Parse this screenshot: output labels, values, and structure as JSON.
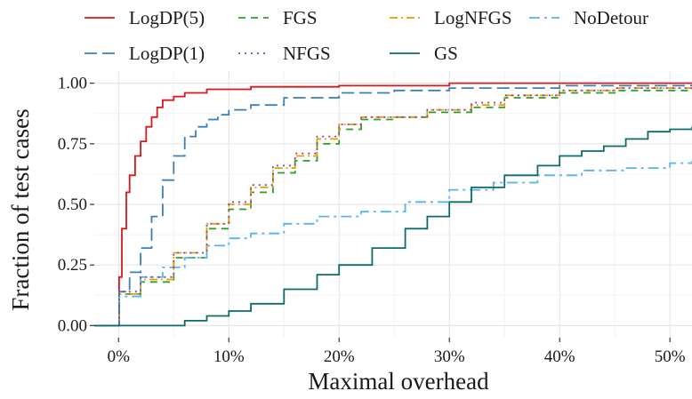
{
  "chart_data": {
    "type": "line",
    "xlabel": "Maximal overhead",
    "ylabel": "Fraction of test cases",
    "x_ticks": [
      "0%",
      "10%",
      "20%",
      "30%",
      "40%",
      "50%"
    ],
    "x_tick_values": [
      0,
      10,
      20,
      30,
      40,
      50
    ],
    "y_ticks": [
      "0.00",
      "0.25",
      "0.50",
      "0.75",
      "1.00"
    ],
    "y_tick_values": [
      0,
      0.25,
      0.5,
      0.75,
      1.0
    ],
    "xlim": [
      -2.2,
      52
    ],
    "ylim": [
      -0.05,
      1.05
    ],
    "grid": true,
    "legend_position": "top",
    "series": [
      {
        "name": "LogDP(5)",
        "color": "#d7191c",
        "dash": "solid",
        "points": [
          [
            -2.2,
            0
          ],
          [
            0,
            0
          ],
          [
            0.05,
            0.2
          ],
          [
            0.3,
            0.4
          ],
          [
            0.7,
            0.55
          ],
          [
            1,
            0.62
          ],
          [
            1.5,
            0.7
          ],
          [
            2,
            0.76
          ],
          [
            2.5,
            0.82
          ],
          [
            3,
            0.86
          ],
          [
            3.5,
            0.9
          ],
          [
            4,
            0.93
          ],
          [
            5,
            0.945
          ],
          [
            6,
            0.96
          ],
          [
            8,
            0.975
          ],
          [
            12,
            0.985
          ],
          [
            20,
            0.99
          ],
          [
            30,
            1
          ],
          [
            52,
            1
          ]
        ]
      },
      {
        "name": "FGS",
        "color": "#2ca02c",
        "dash": "8,6",
        "points": [
          [
            -2.2,
            0
          ],
          [
            0,
            0
          ],
          [
            0.05,
            0.13
          ],
          [
            2,
            0.18
          ],
          [
            5,
            0.28
          ],
          [
            8,
            0.4
          ],
          [
            10,
            0.48
          ],
          [
            12,
            0.55
          ],
          [
            14,
            0.63
          ],
          [
            16,
            0.68
          ],
          [
            18,
            0.75
          ],
          [
            20,
            0.81
          ],
          [
            22,
            0.85
          ],
          [
            25,
            0.86
          ],
          [
            28,
            0.88
          ],
          [
            32,
            0.9
          ],
          [
            35,
            0.94
          ],
          [
            40,
            0.96
          ],
          [
            45,
            0.97
          ],
          [
            52,
            0.98
          ]
        ]
      },
      {
        "name": "LogNFGS",
        "color": "#e69f00",
        "dash": "9,4,2,4",
        "points": [
          [
            -2.2,
            0
          ],
          [
            0,
            0
          ],
          [
            0.05,
            0.13
          ],
          [
            2,
            0.19
          ],
          [
            5,
            0.3
          ],
          [
            8,
            0.42
          ],
          [
            10,
            0.5
          ],
          [
            12,
            0.57
          ],
          [
            14,
            0.65
          ],
          [
            16,
            0.7
          ],
          [
            18,
            0.77
          ],
          [
            20,
            0.83
          ],
          [
            22,
            0.86
          ],
          [
            25,
            0.86
          ],
          [
            28,
            0.89
          ],
          [
            32,
            0.91
          ],
          [
            35,
            0.95
          ],
          [
            40,
            0.97
          ],
          [
            45,
            0.98
          ],
          [
            52,
            0.99
          ]
        ]
      },
      {
        "name": "NoDetour",
        "color": "#56b4e9",
        "dash": "12,5,3,5",
        "points": [
          [
            -2.2,
            0
          ],
          [
            0,
            0
          ],
          [
            0.05,
            0.12
          ],
          [
            2,
            0.2
          ],
          [
            4,
            0.24
          ],
          [
            6,
            0.28
          ],
          [
            8,
            0.33
          ],
          [
            10,
            0.36
          ],
          [
            12,
            0.38
          ],
          [
            15,
            0.42
          ],
          [
            18,
            0.45
          ],
          [
            22,
            0.47
          ],
          [
            26,
            0.51
          ],
          [
            30,
            0.56
          ],
          [
            34,
            0.59
          ],
          [
            38,
            0.62
          ],
          [
            42,
            0.64
          ],
          [
            46,
            0.65
          ],
          [
            50,
            0.67
          ],
          [
            52,
            0.68
          ]
        ]
      },
      {
        "name": "LogDP(1)",
        "color": "#3a7fb5",
        "dash": "14,6",
        "points": [
          [
            -2.2,
            0
          ],
          [
            0,
            0
          ],
          [
            0.05,
            0.14
          ],
          [
            1,
            0.22
          ],
          [
            2,
            0.32
          ],
          [
            3,
            0.45
          ],
          [
            4,
            0.6
          ],
          [
            5,
            0.7
          ],
          [
            6,
            0.78
          ],
          [
            7,
            0.82
          ],
          [
            8,
            0.85
          ],
          [
            9,
            0.87
          ],
          [
            10,
            0.89
          ],
          [
            12,
            0.91
          ],
          [
            15,
            0.94
          ],
          [
            20,
            0.96
          ],
          [
            25,
            0.97
          ],
          [
            30,
            0.98
          ],
          [
            40,
            0.99
          ],
          [
            52,
            0.995
          ]
        ]
      },
      {
        "name": "NFGS",
        "color": "#8e3fa8",
        "dash": "2,5",
        "points": [
          [
            -2.2,
            0
          ],
          [
            0,
            0
          ],
          [
            0.05,
            0.14
          ],
          [
            2,
            0.2
          ],
          [
            5,
            0.3
          ],
          [
            8,
            0.42
          ],
          [
            10,
            0.51
          ],
          [
            12,
            0.58
          ],
          [
            14,
            0.66
          ],
          [
            16,
            0.71
          ],
          [
            18,
            0.78
          ],
          [
            20,
            0.83
          ],
          [
            22,
            0.86
          ],
          [
            25,
            0.86
          ],
          [
            28,
            0.89
          ],
          [
            32,
            0.92
          ],
          [
            35,
            0.95
          ],
          [
            40,
            0.97
          ],
          [
            45,
            0.98
          ],
          [
            52,
            0.99
          ]
        ]
      },
      {
        "name": "GS",
        "color": "#0d6b6b",
        "dash": "solid",
        "points": [
          [
            -2.2,
            0
          ],
          [
            5,
            0
          ],
          [
            6,
            0.02
          ],
          [
            8,
            0.04
          ],
          [
            10,
            0.06
          ],
          [
            12,
            0.09
          ],
          [
            15,
            0.15
          ],
          [
            18,
            0.21
          ],
          [
            20,
            0.25
          ],
          [
            23,
            0.32
          ],
          [
            26,
            0.4
          ],
          [
            28,
            0.45
          ],
          [
            30,
            0.51
          ],
          [
            32,
            0.57
          ],
          [
            35,
            0.62
          ],
          [
            38,
            0.66
          ],
          [
            40,
            0.7
          ],
          [
            42,
            0.72
          ],
          [
            44,
            0.74
          ],
          [
            46,
            0.77
          ],
          [
            48,
            0.8
          ],
          [
            50,
            0.81
          ],
          [
            52,
            0.82
          ]
        ]
      }
    ]
  }
}
